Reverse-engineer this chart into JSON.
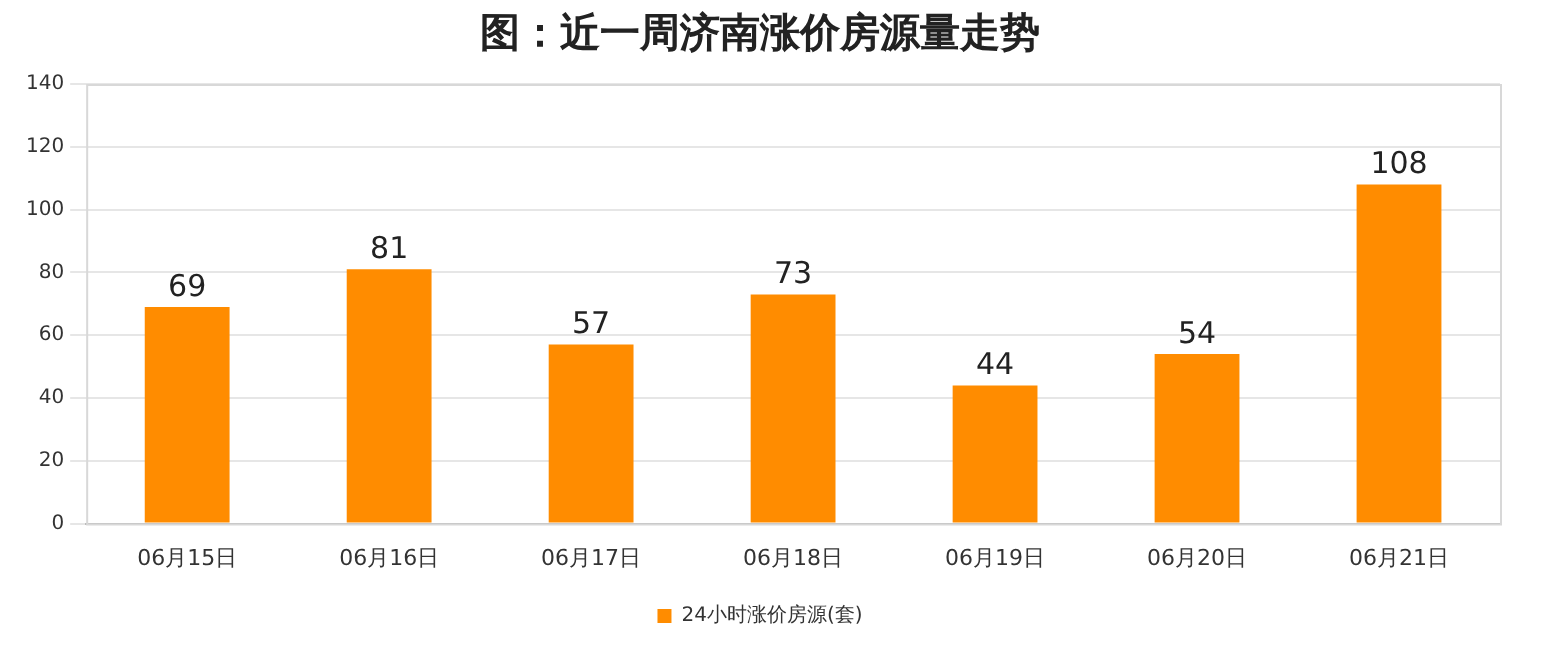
{
  "chart_data": {
    "type": "bar",
    "title": "图：近一周济南涨价房源量走势",
    "categories": [
      "06月15日",
      "06月16日",
      "06月17日",
      "06月18日",
      "06月19日",
      "06月20日",
      "06月21日"
    ],
    "series": [
      {
        "name": "24小时涨价房源(套)",
        "color": "#ff8c00",
        "values": [
          69,
          81,
          57,
          73,
          44,
          54,
          108
        ]
      }
    ],
    "ylim": [
      0,
      140
    ],
    "yticks": [
      0,
      20,
      40,
      60,
      80,
      100,
      120,
      140
    ],
    "grid": "y",
    "legend": "bottom",
    "data_labels": true
  }
}
